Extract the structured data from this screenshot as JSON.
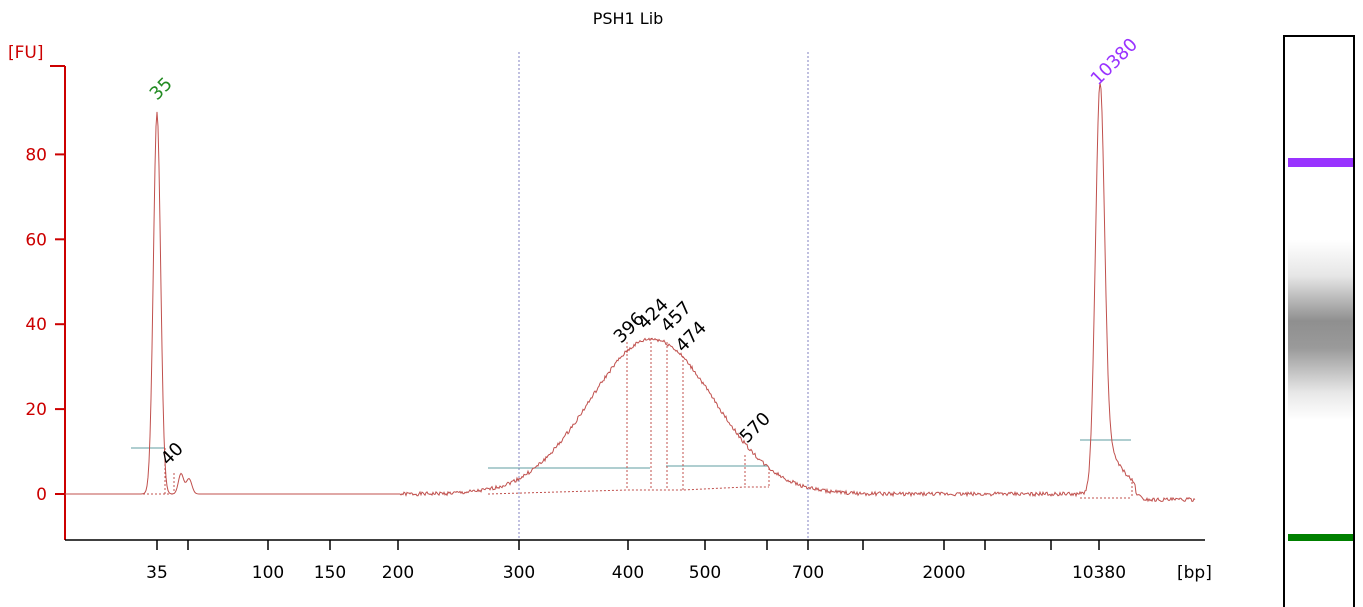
{
  "chart_data": {
    "type": "line",
    "title": "PSH1 Lib",
    "ylabel": "[FU]",
    "xlabel": "[bp]",
    "ylim": [
      -10,
      100
    ],
    "y_ticks": [
      0,
      20,
      40,
      60,
      80
    ],
    "x_tick_labels": [
      "35",
      "100",
      "150",
      "200",
      "300",
      "400",
      "500",
      "700",
      "2000",
      "10380"
    ],
    "vertical_guides_at": [
      "300",
      "700"
    ],
    "colors": {
      "axis": "#cc0000",
      "trace": "#c0504d",
      "baseline": "#5f9ea0",
      "lower_marker": "#228b22",
      "upper_marker": "#9933ff",
      "guide": "#8080c0",
      "peak_label": "#000000"
    },
    "peaks": [
      {
        "label": "35",
        "type": "lower_marker",
        "height": 90
      },
      {
        "label": "40",
        "type": "sample",
        "height": 5
      },
      {
        "label": "396",
        "type": "sample",
        "height": 36
      },
      {
        "label": "424",
        "type": "sample",
        "height": 37
      },
      {
        "label": "457",
        "type": "sample",
        "height": 36
      },
      {
        "label": "474",
        "type": "sample",
        "height": 33
      },
      {
        "label": "570",
        "type": "sample",
        "height": 9
      },
      {
        "label": "10380",
        "type": "upper_marker",
        "height": 94
      }
    ],
    "gel_lane": {
      "bands": [
        {
          "name": "upper marker",
          "color": "#9933ff"
        },
        {
          "name": "sample smear",
          "color": "#888888"
        },
        {
          "name": "lower marker",
          "color": "#008000"
        }
      ]
    }
  }
}
